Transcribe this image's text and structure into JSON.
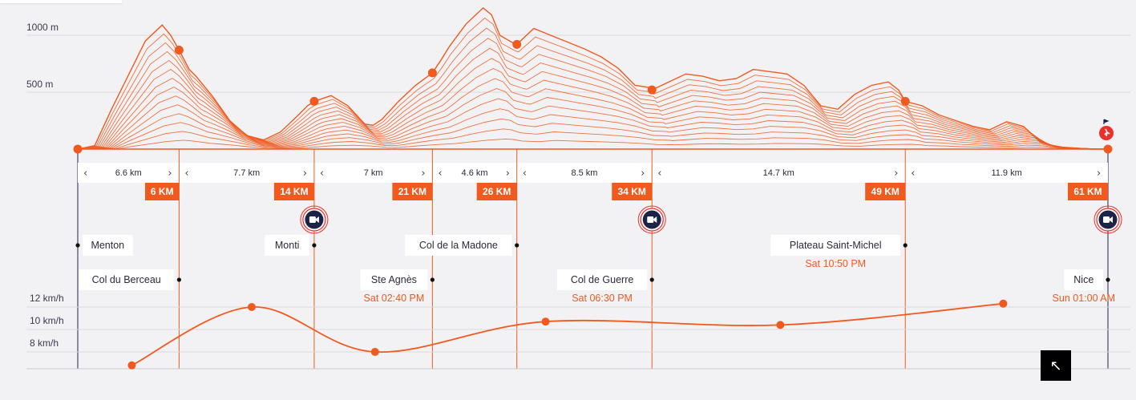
{
  "chart_data": [
    {
      "type": "area",
      "title": "",
      "ylabel": "",
      "y_tick_labels": [
        "1000 m",
        "500 m"
      ],
      "y_ticks": [
        1000,
        500
      ],
      "ylim": [
        0,
        1150
      ],
      "xlim_km": [
        0,
        61
      ],
      "elevation_profile": {
        "x_km": [
          0,
          1,
          2,
          3,
          4,
          5,
          5.5,
          6,
          6.6,
          7,
          8,
          9,
          10,
          11,
          12,
          13,
          13.6,
          14,
          15,
          16,
          17,
          17.5,
          18,
          19,
          20,
          21,
          21.5,
          22,
          23,
          24,
          24.5,
          25,
          25.8,
          26,
          27,
          28,
          29,
          30,
          31,
          32,
          33,
          33.9,
          34,
          35,
          36,
          37,
          38,
          39,
          40,
          41,
          42,
          43,
          44,
          45,
          46,
          47,
          48,
          48.6,
          49,
          50,
          51,
          52,
          53,
          54,
          55,
          56,
          57,
          58,
          59,
          60,
          61
        ],
        "elevation_m": [
          0,
          30,
          350,
          650,
          950,
          1090,
          1000,
          870,
          700,
          640,
          460,
          250,
          120,
          80,
          150,
          290,
          380,
          420,
          470,
          380,
          220,
          210,
          260,
          420,
          560,
          670,
          780,
          900,
          1100,
          1240,
          1180,
          1000,
          930,
          920,
          1060,
          1000,
          940,
          880,
          810,
          710,
          560,
          540,
          520,
          590,
          660,
          640,
          600,
          620,
          700,
          680,
          660,
          560,
          380,
          350,
          480,
          560,
          590,
          520,
          420,
          380,
          300,
          250,
          200,
          170,
          240,
          200,
          60,
          20,
          10,
          0,
          0
        ],
        "layers": 14
      },
      "checkpoints_km": [
        0,
        6,
        14,
        21,
        26,
        34,
        49,
        61
      ],
      "checkpoint_labels": [
        "6 KM",
        "14 KM",
        "21 KM",
        "26 KM",
        "34 KM",
        "49 KM",
        "61 KM"
      ],
      "segment_labels": [
        "6.6 km",
        "7.7 km",
        "7 km",
        "4.6 km",
        "8.5 km",
        "14.7 km",
        "11.9 km"
      ],
      "places": [
        {
          "name": "Menton",
          "time": ""
        },
        {
          "name": "Col du Berceau",
          "time": ""
        },
        {
          "name": "Monti",
          "time": ""
        },
        {
          "name": "Ste Agnès",
          "time": "Sat 02:40 PM"
        },
        {
          "name": "Col de la Madone",
          "time": ""
        },
        {
          "name": "Col de Guerre",
          "time": "Sat 06:30 PM"
        },
        {
          "name": "Plateau Saint-Michel",
          "time": "Sat 10:50 PM"
        },
        {
          "name": "Nice",
          "time": "Sun 01:00 AM"
        }
      ]
    },
    {
      "type": "line",
      "title": "",
      "ylabel": "",
      "y_tick_labels": [
        "12 km/h",
        "10 km/h",
        "8 km/h"
      ],
      "y_ticks": [
        12,
        10,
        8
      ],
      "ylim": [
        6.5,
        12.5
      ],
      "series": [
        {
          "x_km": [
            3.2,
            10.3,
            17.6,
            27.7,
            41.6,
            54.8
          ],
          "values": [
            6.8,
            12.0,
            8.0,
            10.7,
            10.4,
            12.3
          ]
        }
      ]
    }
  ],
  "colors": {
    "accent": "#f05a1e",
    "navy": "#1d2247",
    "grid": "#d9d9de",
    "background": "#f2f2f4"
  },
  "icons": {
    "camera": "video-camera-icon",
    "runner": "runner-icon",
    "collapse": "arrow-up-left-icon",
    "chevron_left": "‹",
    "chevron_right": "›"
  },
  "controls": {
    "collapse_glyph": "↖"
  }
}
